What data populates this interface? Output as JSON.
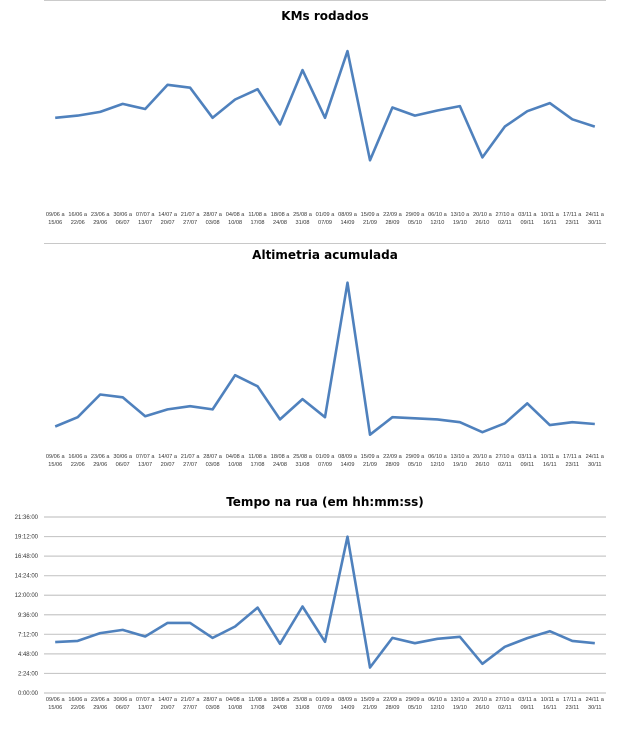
{
  "chart_data": [
    {
      "type": "line",
      "title": "KMs rodados",
      "y_ticks": [
        "0.00",
        "20.00",
        "40.00",
        "60.00",
        "80.00",
        "100.00",
        "120.00"
      ],
      "ylim": [
        0,
        120
      ],
      "grid": true,
      "color": "#4f81bd",
      "categories": [
        "09/06 a 15/06",
        "16/06 a 22/06",
        "23/06 a 29/06",
        "30/06 a 06/07",
        "07/07 a 13/07",
        "14/07 a 20/07",
        "21/07 a 27/07",
        "28/07 a 03/08",
        "04/08 a 10/08",
        "11/08 a 17/08",
        "18/08 a 24/08",
        "25/08 a 31/08",
        "01/09 a 07/09",
        "08/09 a 14/09",
        "15/09 a 21/09",
        "22/09 a 28/09",
        "29/09 a 05/10",
        "06/10 a 12/10",
        "13/10 a 19/10",
        "20/10 a 26/10",
        "27/10 a 02/11",
        "03/11 a 09/11",
        "10/11 a 16/11",
        "17/11 a 23/11",
        "24/11 a 30/11"
      ],
      "values": [
        61.5,
        63,
        65.5,
        71,
        67.5,
        84,
        82,
        61.5,
        74,
        81,
        57,
        94,
        61.5,
        107,
        32.5,
        68.5,
        63,
        66.5,
        69.5,
        34.5,
        55.5,
        66,
        71.5,
        60.5,
        55.5
      ]
    },
    {
      "type": "line",
      "title": "Altimetria acumulada",
      "y_ticks": [
        "0",
        "500",
        "1000",
        "1500",
        "2000",
        "2500",
        "3000",
        "3500",
        "4000",
        "4500",
        "5000"
      ],
      "ylim": [
        0,
        5000
      ],
      "grid": true,
      "color": "#4f81bd",
      "categories": [
        "09/06 a 15/06",
        "16/06 a 22/06",
        "23/06 a 29/06",
        "30/06 a 06/07",
        "07/07 a 13/07",
        "14/07 a 20/07",
        "21/07 a 27/07",
        "28/07 a 03/08",
        "04/08 a 10/08",
        "11/08 a 17/08",
        "18/08 a 24/08",
        "25/08 a 31/08",
        "01/09 a 07/09",
        "08/09 a 14/09",
        "15/09 a 21/09",
        "22/09 a 28/09",
        "29/09 a 05/10",
        "06/10 a 12/10",
        "13/10 a 19/10",
        "20/10 a 26/10",
        "27/10 a 02/11",
        "03/11 a 09/11",
        "10/11 a 16/11",
        "17/11 a 23/11",
        "24/11 a 30/11"
      ],
      "values": [
        660,
        920,
        1560,
        1480,
        950,
        1140,
        1230,
        1140,
        2100,
        1790,
        860,
        1430,
        920,
        4700,
        430,
        920,
        890,
        860,
        780,
        500,
        750,
        1310,
        700,
        780,
        730
      ]
    },
    {
      "type": "line",
      "title": "Tempo na rua (em hh:mm:ss)",
      "y_ticks": [
        "0:00:00",
        "2:24:00",
        "4:48:00",
        "7:12:00",
        "9:36:00",
        "12:00:00",
        "14:24:00",
        "16:48:00",
        "19:12:00",
        "21:36:00"
      ],
      "ylim": [
        "0:00:00",
        "21:36:00"
      ],
      "grid": true,
      "color": "#4f81bd",
      "categories": [
        "09/06 a 15/06",
        "16/06 a 22/06",
        "23/06 a 29/06",
        "30/06 a 06/07",
        "07/07 a 13/07",
        "14/07 a 20/07",
        "21/07 a 27/07",
        "28/07 a 03/08",
        "04/08 a 10/08",
        "11/08 a 17/08",
        "18/08 a 24/08",
        "25/08 a 31/08",
        "01/09 a 07/09",
        "08/09 a 14/09",
        "15/09 a 21/09",
        "22/09 a 28/09",
        "29/09 a 05/10",
        "06/10 a 12/10",
        "13/10 a 19/10",
        "20/10 a 26/10",
        "27/10 a 02/11",
        "03/11 a 09/11",
        "10/11 a 16/11",
        "17/11 a 23/11",
        "24/11 a 30/11"
      ],
      "values": [
        "6:15:00",
        "6:24:00",
        "7:21:00",
        "7:45:00",
        "6:56:00",
        "8:36:00",
        "8:36:00",
        "6:46:00",
        "8:10:00",
        "10:29:00",
        "6:02:00",
        "10:37:00",
        "6:17:00",
        "19:11:00",
        "3:08:00",
        "6:46:00",
        "6:07:00",
        "6:39:00",
        "6:54:00",
        "3:35:00",
        "5:40:00",
        "6:44:00",
        "7:35:00",
        "6:24:00",
        "6:07:00"
      ]
    }
  ]
}
